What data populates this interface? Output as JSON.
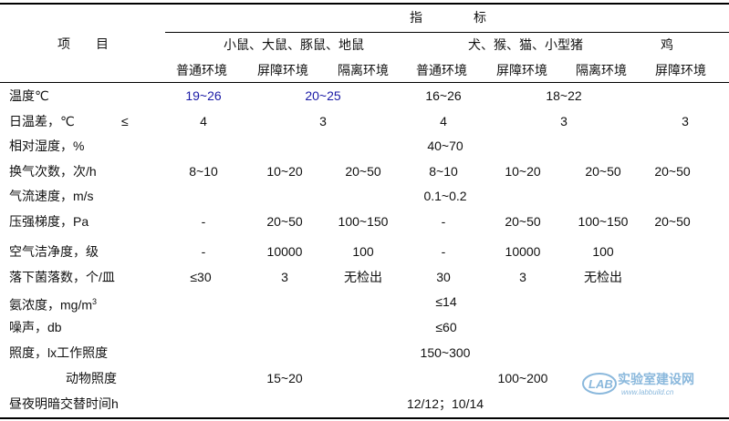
{
  "header": {
    "item_label": "项　　目",
    "indicator_label": "指　　　　标",
    "groups": [
      "小鼠、大鼠、豚鼠、地鼠",
      "犬、猴、猫、小型猪",
      "鸡"
    ],
    "environments": [
      "普通环境",
      "屏障环境",
      "隔离环境",
      "普通环境",
      "屏障环境",
      "隔离环境",
      "屏障环境"
    ]
  },
  "rows": [
    {
      "label": "温度℃",
      "cells": [
        "19~26",
        "20~25",
        "16~26",
        "18~22"
      ]
    },
    {
      "label": "日温差，℃",
      "suffix": "≤",
      "cells": [
        "4",
        "3",
        "4",
        "3",
        "3"
      ]
    },
    {
      "label": "相对湿度，%",
      "cells": [
        "40~70"
      ]
    },
    {
      "label": "换气次数，次/h",
      "cells": [
        "8~10",
        "10~20",
        "20~50",
        "8~10",
        "10~20",
        "20~50",
        "20~50"
      ]
    },
    {
      "label": "气流速度，m/s",
      "cells": [
        "0.1~0.2"
      ]
    },
    {
      "label": "压强梯度，Pa",
      "cells": [
        "-",
        "20~50",
        "100~150",
        "-",
        "20~50",
        "100~150",
        "20~50"
      ]
    },
    {
      "label": "空气洁净度，级",
      "cells": [
        "-",
        "10000",
        "100",
        "-",
        "10000",
        "100"
      ]
    },
    {
      "label": "落下菌落数，个/皿",
      "cells": [
        "≤30",
        "3",
        "无检出",
        "30",
        "3",
        "无检出"
      ]
    },
    {
      "label": "氨浓度，mg/m",
      "sup": "3",
      "cells": [
        "≤14"
      ]
    },
    {
      "label": "噪声，db",
      "cells": [
        "≤60"
      ]
    },
    {
      "label": "照度，lx工作照度",
      "cells": [
        "150~300"
      ]
    },
    {
      "label": "动物照度",
      "cells": [
        "15~20",
        "100~200"
      ]
    },
    {
      "label": "昼夜明暗交替时间h",
      "cells": [
        "12/12；10/14"
      ]
    }
  ],
  "colors": {
    "text": "#111111",
    "accent": "#1a1aa6",
    "watermark": "#2b7fc1"
  },
  "watermark": {
    "logo_text": "LAB",
    "site_text": "实验室建设网",
    "url_text": "www.labbuild.cn"
  }
}
